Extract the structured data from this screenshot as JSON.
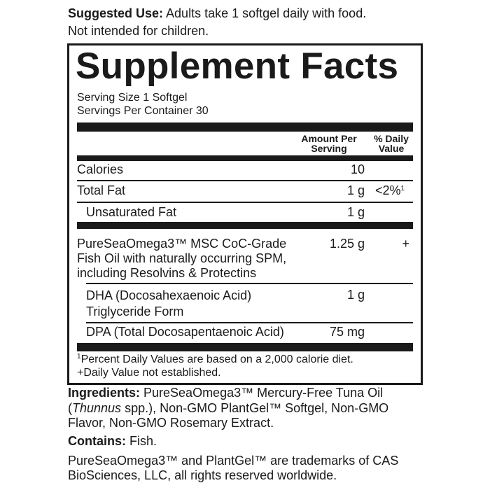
{
  "suggested_use": {
    "label": "Suggested Use:",
    "text": " Adults take 1 softgel daily with food.",
    "line2": "Not intended for children."
  },
  "facts": {
    "title": "Supplement Facts",
    "serving_size": "Serving Size 1 Softgel",
    "servings_per_container": "Servings Per Container 30",
    "col_amount": [
      "Amount Per",
      "Serving"
    ],
    "col_dv": [
      "% Daily",
      "Value"
    ],
    "rows": [
      {
        "name": [
          "Calories"
        ],
        "amount": "10",
        "dv": ""
      },
      {
        "name": [
          "Total Fat"
        ],
        "amount": "1 g",
        "dv": "<2%",
        "dv_sup": "1"
      },
      {
        "name": [
          "Unsaturated Fat"
        ],
        "amount": "1 g",
        "dv": ""
      },
      {
        "name": [
          "PureSeaOmega3™ MSC CoC-Grade",
          "Fish Oil with naturally occurring SPM,",
          "including Resolvins & Protectins"
        ],
        "amount": "1.25 g",
        "dv": "+"
      },
      {
        "name": [
          "DHA (Docosahexaenoic Acid)",
          "Triglyceride Form"
        ],
        "amount": "1 g",
        "dv": ""
      },
      {
        "name": [
          "DPA (Total Docosapentaenoic Acid)"
        ],
        "amount": "75 mg",
        "dv": ""
      }
    ],
    "footnote1_sup": "1",
    "footnote1": "Percent Daily Values are based on a 2,000 calorie diet.",
    "footnote2": "+Daily Value not established."
  },
  "ingredients": {
    "label": "Ingredients:",
    "line1": " PureSeaOmega3™ Mercury-Free Tuna Oil",
    "line2_pre": "(",
    "line2_italic": "Thunnus",
    "line2_post": " spp.), Non-GMO PlantGel™ Softgel, Non-GMO",
    "line3": "Flavor, Non-GMO Rosemary Extract."
  },
  "contains": {
    "label": "Contains:",
    "text": " Fish."
  },
  "trademark": [
    "PureSeaOmega3™ and PlantGel™ are trademarks of CAS",
    "BioSciences, LLC, all rights reserved worldwide."
  ]
}
